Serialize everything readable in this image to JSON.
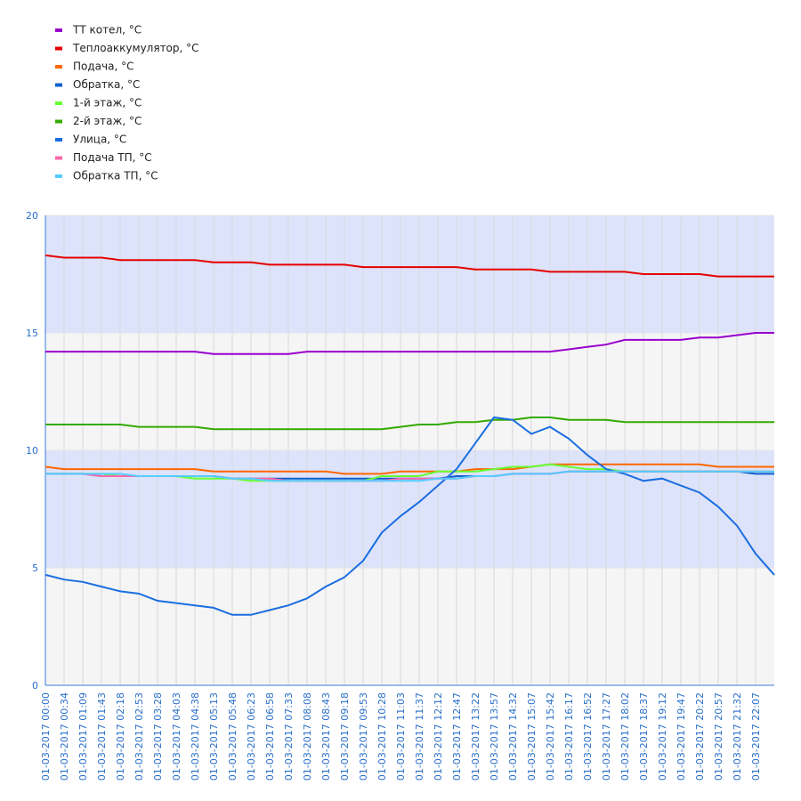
{
  "chart_data": {
    "type": "line",
    "categories": [
      "01-03-2017 00:00",
      "01-03-2017 00:34",
      "01-03-2017 01:09",
      "01-03-2017 01:43",
      "01-03-2017 02:18",
      "01-03-2017 02:53",
      "01-03-2017 03:28",
      "01-03-2017 04:03",
      "01-03-2017 04:38",
      "01-03-2017 05:13",
      "01-03-2017 05:48",
      "01-03-2017 06:23",
      "01-03-2017 06:58",
      "01-03-2017 07:33",
      "01-03-2017 08:08",
      "01-03-2017 08:43",
      "01-03-2017 09:18",
      "01-03-2017 09:53",
      "01-03-2017 10:28",
      "01-03-2017 11:03",
      "01-03-2017 11:37",
      "01-03-2017 12:12",
      "01-03-2017 12:47",
      "01-03-2017 13:22",
      "01-03-2017 13:57",
      "01-03-2017 14:32",
      "01-03-2017 15:07",
      "01-03-2017 15:42",
      "01-03-2017 16:17",
      "01-03-2017 16:52",
      "01-03-2017 17:27",
      "01-03-2017 18:02",
      "01-03-2017 18:37",
      "01-03-2017 19:12",
      "01-03-2017 19:47",
      "01-03-2017 20:22",
      "01-03-2017 20:57",
      "01-03-2017 21:32",
      "01-03-2017 22:07",
      null
    ],
    "ylim": [
      0,
      20
    ],
    "yticks": [
      0,
      5,
      10,
      15,
      20
    ],
    "grid": true,
    "series": [
      {
        "name": "ТТ котел, °C",
        "color": "#9900cc",
        "values": [
          14.2,
          14.2,
          14.2,
          14.2,
          14.2,
          14.2,
          14.2,
          14.2,
          14.2,
          14.1,
          14.1,
          14.1,
          14.1,
          14.1,
          14.2,
          14.2,
          14.2,
          14.2,
          14.2,
          14.2,
          14.2,
          14.2,
          14.2,
          14.2,
          14.2,
          14.2,
          14.2,
          14.2,
          14.3,
          14.4,
          14.5,
          14.7,
          14.7,
          14.7,
          14.7,
          14.8,
          14.8,
          14.9,
          15.0,
          15.0
        ]
      },
      {
        "name": "Теплоаккумулятор, °C",
        "color": "#e60000",
        "values": [
          18.3,
          18.2,
          18.2,
          18.2,
          18.1,
          18.1,
          18.1,
          18.1,
          18.1,
          18.0,
          18.0,
          18.0,
          17.9,
          17.9,
          17.9,
          17.9,
          17.9,
          17.8,
          17.8,
          17.8,
          17.8,
          17.8,
          17.8,
          17.7,
          17.7,
          17.7,
          17.7,
          17.6,
          17.6,
          17.6,
          17.6,
          17.6,
          17.5,
          17.5,
          17.5,
          17.5,
          17.4,
          17.4,
          17.4,
          17.4
        ]
      },
      {
        "name": "Подача, °C",
        "color": "#ff6600",
        "values": [
          9.3,
          9.2,
          9.2,
          9.2,
          9.2,
          9.2,
          9.2,
          9.2,
          9.2,
          9.1,
          9.1,
          9.1,
          9.1,
          9.1,
          9.1,
          9.1,
          9.0,
          9.0,
          9.0,
          9.1,
          9.1,
          9.1,
          9.1,
          9.2,
          9.2,
          9.2,
          9.3,
          9.4,
          9.4,
          9.4,
          9.4,
          9.4,
          9.4,
          9.4,
          9.4,
          9.4,
          9.3,
          9.3,
          9.3,
          9.3
        ]
      },
      {
        "name": "Обратка, °C",
        "color": "#0a5fd0",
        "values": [
          9.0,
          9.0,
          9.0,
          8.9,
          8.9,
          8.9,
          8.9,
          8.9,
          8.9,
          8.9,
          8.8,
          8.8,
          8.8,
          8.8,
          8.8,
          8.8,
          8.8,
          8.8,
          8.8,
          8.8,
          8.8,
          8.8,
          8.9,
          8.9,
          8.9,
          9.0,
          9.0,
          9.0,
          9.1,
          9.1,
          9.1,
          9.1,
          9.1,
          9.1,
          9.1,
          9.1,
          9.1,
          9.1,
          9.0,
          9.0
        ]
      },
      {
        "name": "1-й этаж, °C",
        "color": "#66ff33",
        "values": [
          9.0,
          9.0,
          9.0,
          9.0,
          8.9,
          8.9,
          8.9,
          8.9,
          8.8,
          8.8,
          8.8,
          8.7,
          8.7,
          8.7,
          8.7,
          8.7,
          8.7,
          8.7,
          8.9,
          8.9,
          8.9,
          9.1,
          9.1,
          9.1,
          9.2,
          9.3,
          9.3,
          9.4,
          9.3,
          9.2,
          9.2,
          9.1,
          9.1,
          9.1,
          9.1,
          9.1,
          9.1,
          9.1,
          9.1,
          9.1
        ]
      },
      {
        "name": "2-й этаж, °C",
        "color": "#33aa00",
        "values": [
          11.1,
          11.1,
          11.1,
          11.1,
          11.1,
          11.0,
          11.0,
          11.0,
          11.0,
          10.9,
          10.9,
          10.9,
          10.9,
          10.9,
          10.9,
          10.9,
          10.9,
          10.9,
          10.9,
          11.0,
          11.1,
          11.1,
          11.2,
          11.2,
          11.3,
          11.3,
          11.4,
          11.4,
          11.3,
          11.3,
          11.3,
          11.2,
          11.2,
          11.2,
          11.2,
          11.2,
          11.2,
          11.2,
          11.2,
          11.2
        ]
      },
      {
        "name": "Улица, °C",
        "color": "#1a6ee0",
        "values": [
          4.7,
          4.5,
          4.4,
          4.2,
          4.0,
          3.9,
          3.6,
          3.5,
          3.4,
          3.3,
          3.0,
          3.0,
          3.2,
          3.4,
          3.7,
          4.2,
          4.6,
          5.3,
          6.5,
          7.2,
          7.8,
          8.5,
          9.2,
          10.3,
          11.4,
          11.3,
          10.7,
          11.0,
          10.5,
          9.8,
          9.2,
          9.0,
          8.7,
          8.8,
          8.5,
          8.2,
          7.6,
          6.8,
          5.6,
          4.7
        ]
      },
      {
        "name": "Подача ТП, °C",
        "color": "#ff66aa",
        "values": [
          9.0,
          9.0,
          9.0,
          8.9,
          8.9,
          8.9,
          8.9,
          8.9,
          8.9,
          8.9,
          8.8,
          8.8,
          8.8,
          8.7,
          8.7,
          8.7,
          8.7,
          8.7,
          8.7,
          8.8,
          8.8,
          8.8,
          8.8,
          8.9,
          8.9,
          9.0,
          9.0,
          9.0,
          9.1,
          9.1,
          9.1,
          9.1,
          9.1,
          9.1,
          9.1,
          9.1,
          9.1,
          9.1,
          9.1,
          9.1
        ]
      },
      {
        "name": "Обратка ТП, °C",
        "color": "#55ccff",
        "values": [
          9.0,
          9.0,
          9.0,
          9.0,
          9.0,
          8.9,
          8.9,
          8.9,
          8.9,
          8.9,
          8.8,
          8.8,
          8.7,
          8.7,
          8.7,
          8.7,
          8.7,
          8.7,
          8.7,
          8.7,
          8.7,
          8.8,
          8.8,
          8.9,
          8.9,
          9.0,
          9.0,
          9.0,
          9.1,
          9.1,
          9.1,
          9.1,
          9.1,
          9.1,
          9.1,
          9.1,
          9.1,
          9.1,
          9.1,
          9.1
        ]
      }
    ]
  }
}
